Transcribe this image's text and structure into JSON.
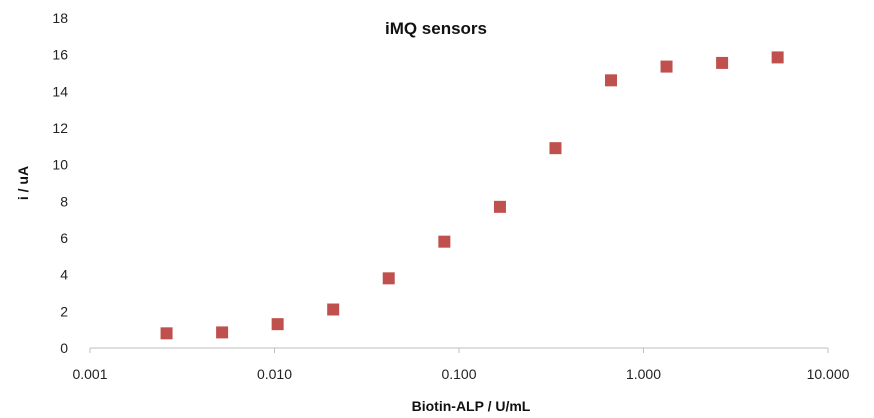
{
  "chart_data": {
    "type": "scatter",
    "title": "iMQ sensors",
    "xlabel": "Biotin-ALP / U/mL",
    "ylabel": "i / uA",
    "x_scale": "log",
    "xlim": [
      0.001,
      10
    ],
    "ylim": [
      0,
      18
    ],
    "x_ticks": [
      0.001,
      0.01,
      0.1,
      1,
      10
    ],
    "x_tick_labels": [
      "0.001",
      "0.010",
      "0.100",
      "1.000",
      "10.000"
    ],
    "y_ticks": [
      0,
      2,
      4,
      6,
      8,
      10,
      12,
      14,
      16,
      18
    ],
    "y_tick_labels": [
      "0",
      "2",
      "4",
      "6",
      "8",
      "10",
      "12",
      "14",
      "16",
      "18"
    ],
    "grid": false,
    "legend": "none",
    "marker": "square",
    "marker_color": "#C0504D",
    "axis_color": "#BFBFBF",
    "series": [
      {
        "x": [
          0.0026,
          0.0052,
          0.0104,
          0.0208,
          0.0416,
          0.0833,
          0.1667,
          0.3333,
          0.6667,
          1.333,
          2.667,
          5.333
        ],
        "y": [
          0.8,
          0.85,
          1.3,
          2.1,
          3.8,
          5.8,
          7.7,
          10.9,
          14.6,
          15.35,
          15.55,
          15.85
        ]
      }
    ]
  }
}
